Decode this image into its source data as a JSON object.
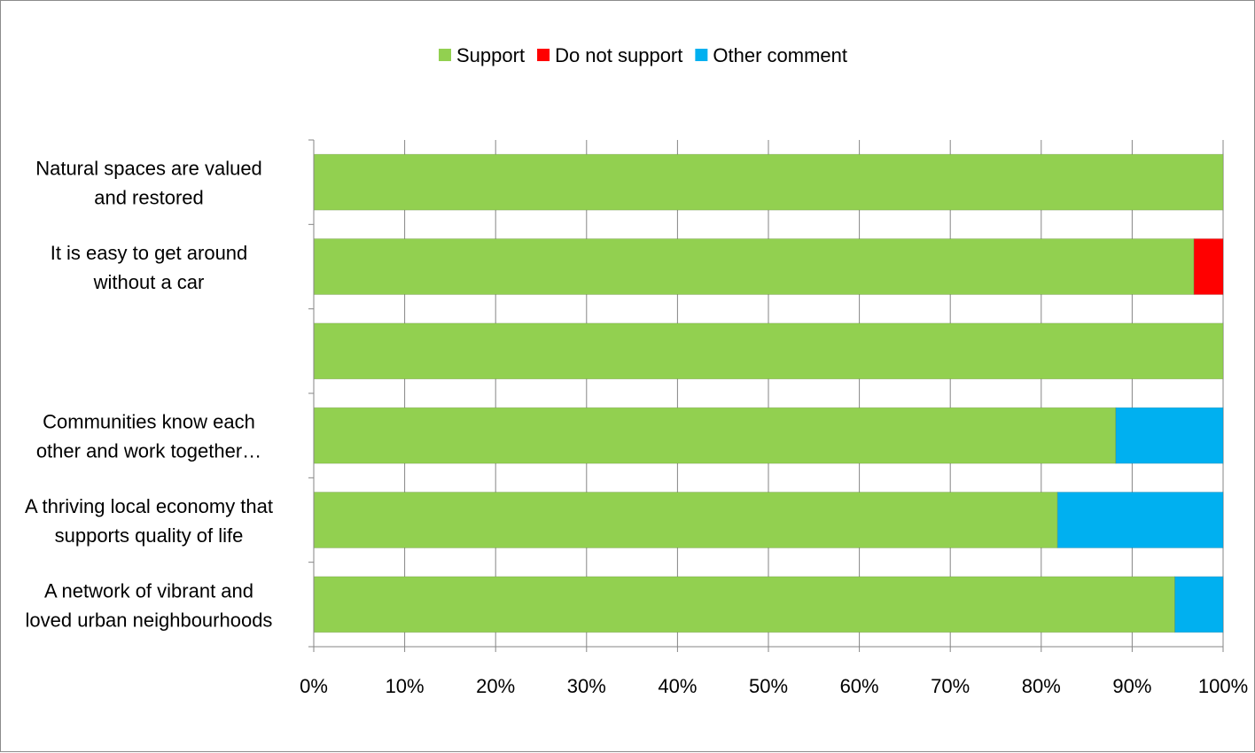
{
  "chart_data": {
    "type": "bar",
    "orientation": "horizontal",
    "stacked": "percent",
    "categories": [
      [
        "Natural spaces are valued",
        "and restored"
      ],
      [
        "It is easy to get around",
        "without a car"
      ],
      [
        "",
        ""
      ],
      [
        "Communities know each",
        "other and work together…"
      ],
      [
        "A thriving local economy that",
        "supports quality of life"
      ],
      [
        "A network of vibrant and",
        "loved urban neighbourhoods"
      ]
    ],
    "series": [
      {
        "name": "Support",
        "color": "#92d050",
        "values": [
          100,
          96.8,
          100,
          88.2,
          81.8,
          94.7
        ]
      },
      {
        "name": "Do not support",
        "color": "#ff0000",
        "values": [
          0,
          3.2,
          0,
          0,
          0,
          0
        ]
      },
      {
        "name": "Other comment",
        "color": "#00b0f0",
        "values": [
          0,
          0,
          0,
          11.8,
          18.2,
          5.3
        ]
      }
    ],
    "xlim": [
      0,
      100
    ],
    "xticks": [
      "0%",
      "10%",
      "20%",
      "30%",
      "40%",
      "50%",
      "60%",
      "70%",
      "80%",
      "90%",
      "100%"
    ],
    "grid": true,
    "legend_position": "top"
  }
}
